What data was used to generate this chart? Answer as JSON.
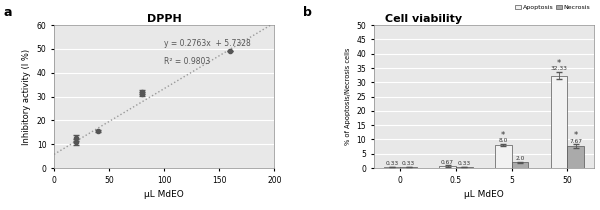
{
  "panel_a": {
    "title": "DPPH",
    "xlabel": "μL MdEO",
    "ylabel": "Inhibitory activity (I %)",
    "xlim": [
      0,
      200
    ],
    "ylim": [
      0,
      60
    ],
    "xticks": [
      0,
      50,
      100,
      150,
      200
    ],
    "yticks": [
      0,
      10,
      20,
      30,
      40,
      50,
      60
    ],
    "data_x": [
      20,
      20,
      40,
      80,
      80,
      160
    ],
    "data_y": [
      11.0,
      12.5,
      15.5,
      31.0,
      32.0,
      49.0
    ],
    "err_y": [
      1.2,
      1.2,
      0.3,
      0.8,
      0.8,
      0.0
    ],
    "eq_line": "y = 0.2763x  + 5.7328",
    "r2_line": "R² = 0.9803",
    "slope": 0.2763,
    "intercept": 5.7328,
    "line_color": "#999999",
    "marker_color": "#555555",
    "bg_color": "#e8e8e8"
  },
  "panel_b": {
    "title": "Cell viability",
    "xlabel": "μL MdEO",
    "ylabel": "% of Apoptosis/Necrosis cells",
    "xlim_groups": [
      0,
      0.5,
      5,
      50
    ],
    "ylim": [
      0,
      50
    ],
    "yticks": [
      0,
      5,
      10,
      15,
      20,
      25,
      30,
      35,
      40,
      45,
      50
    ],
    "apoptosis_values": [
      0.33,
      0.67,
      8.0,
      32.33
    ],
    "apoptosis_errors": [
      0.15,
      0.25,
      0.4,
      1.2
    ],
    "necrosis_values": [
      0.33,
      0.33,
      2.0,
      7.67
    ],
    "necrosis_errors": [
      0.15,
      0.15,
      0.25,
      0.6
    ],
    "apoptosis_color": "#f2f2f2",
    "necrosis_color": "#aaaaaa",
    "bar_edge_color": "#555555",
    "asterisk_groups": [
      2,
      3
    ],
    "bg_color": "#e8e8e8",
    "legend_labels": [
      "Apoptosis",
      "Necrosis"
    ]
  },
  "fig_bg": "#ffffff"
}
